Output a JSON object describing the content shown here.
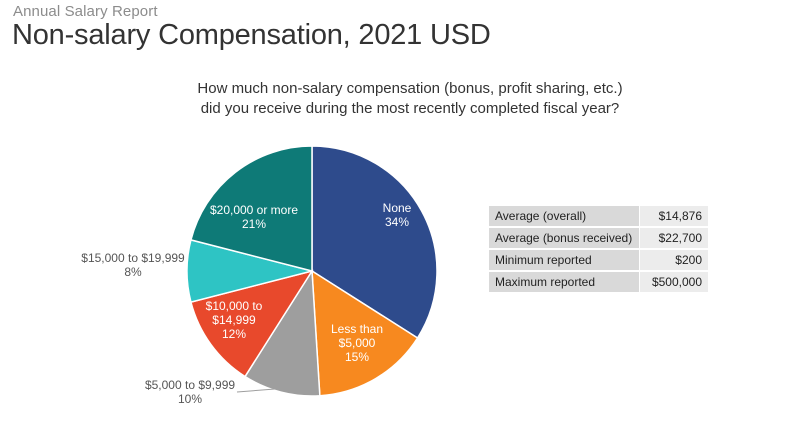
{
  "header": {
    "kicker": "Annual Salary Report",
    "title": "Non-salary Compensation, 2021 USD"
  },
  "chart_data": {
    "type": "pie",
    "question_line1": "How much non-salary compensation (bonus, profit sharing, etc.)",
    "question_line2": "did you receive during the most recently completed fiscal year?",
    "slices": [
      {
        "label_lines": [
          "None"
        ],
        "percent_text": "34%",
        "value": 34,
        "color": "#2e4b8c"
      },
      {
        "label_lines": [
          "Less than",
          "$5,000"
        ],
        "percent_text": "15%",
        "value": 15,
        "color": "#f7891f"
      },
      {
        "label_lines": [
          "$5,000 to $9,999"
        ],
        "percent_text": "10%",
        "value": 10,
        "color": "#9e9e9e"
      },
      {
        "label_lines": [
          "$10,000 to",
          "$14,999"
        ],
        "percent_text": "12%",
        "value": 12,
        "color": "#e8492c"
      },
      {
        "label_lines": [
          "$15,000 to $19,999"
        ],
        "percent_text": "8%",
        "value": 8,
        "color": "#2ec4c4"
      },
      {
        "label_lines": [
          "$20,000 or more"
        ],
        "percent_text": "21%",
        "value": 21,
        "color": "#0e7a77"
      }
    ]
  },
  "stats": [
    {
      "label": "Average (overall)",
      "value": "$14,876"
    },
    {
      "label": "Average (bonus received)",
      "value": "$22,700"
    },
    {
      "label": "Minimum reported",
      "value": "$200"
    },
    {
      "label": "Maximum reported",
      "value": "$500,000"
    }
  ]
}
